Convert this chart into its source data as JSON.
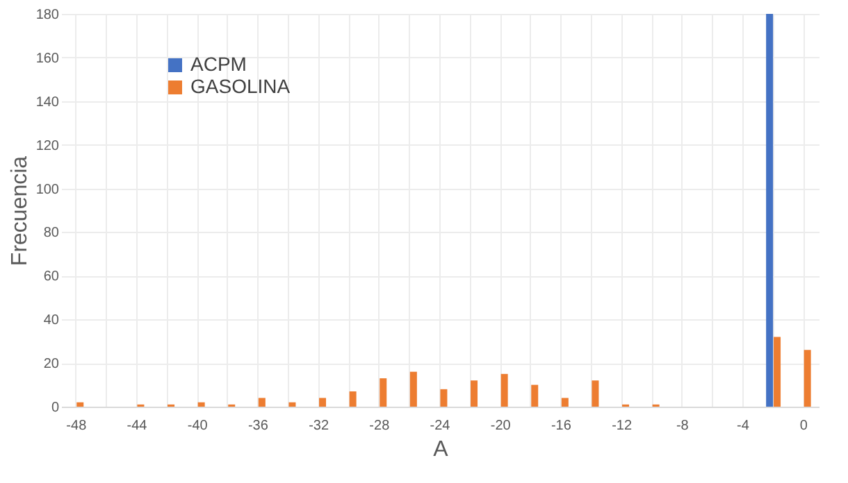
{
  "chart_data": {
    "type": "bar",
    "xlabel": "A",
    "ylabel": "Frecuencia",
    "categories": [
      "-48",
      null,
      "-44",
      null,
      "-40",
      null,
      "-36",
      null,
      "-32",
      null,
      "-28",
      null,
      "-24",
      null,
      "-20",
      null,
      "-16",
      null,
      "-12",
      null,
      "-8",
      null,
      "-4",
      null,
      "0"
    ],
    "series": [
      {
        "name": "ACPM",
        "color": "#4472c4",
        "values": [
          0,
          0,
          0,
          0,
          0,
          0,
          0,
          0,
          0,
          0,
          0,
          0,
          0,
          0,
          0,
          0,
          0,
          0,
          0,
          0,
          0,
          0,
          0,
          180,
          0
        ]
      },
      {
        "name": "GASOLINA",
        "color": "#ed7d31",
        "values": [
          2,
          0,
          1,
          1,
          2,
          1,
          4,
          2,
          4,
          7,
          13,
          16,
          8,
          12,
          15,
          10,
          4,
          12,
          1,
          1,
          0,
          0,
          0,
          32,
          26
        ]
      }
    ],
    "ylim": [
      0,
      180
    ],
    "yticks": [
      0,
      20,
      40,
      60,
      80,
      100,
      120,
      140,
      160,
      180
    ],
    "grid": true,
    "legend": "top left"
  }
}
